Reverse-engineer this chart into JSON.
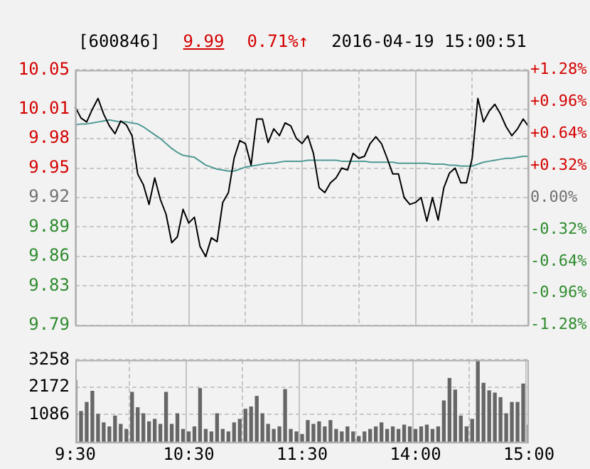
{
  "chart_data": [
    {
      "type": "line",
      "title": "[600846]",
      "annotations": [
        "9.99",
        "0.71%↑",
        "2016-04-19 15:00:51"
      ],
      "categories": [
        null,
        null,
        null,
        null,
        null,
        null,
        null,
        null,
        null,
        null,
        null,
        null,
        null,
        null,
        null,
        null,
        null,
        null,
        null,
        null,
        null,
        null,
        null,
        null,
        null,
        null,
        null,
        null,
        null,
        null,
        null,
        null,
        null,
        null,
        null,
        null,
        null,
        null,
        null,
        null,
        null,
        null,
        null,
        null,
        null,
        null,
        null,
        null,
        null,
        null,
        null,
        null,
        null,
        null,
        null,
        null,
        null,
        null,
        null,
        null,
        null,
        null,
        null,
        null,
        null,
        null,
        null,
        null,
        null,
        null,
        null,
        null,
        null,
        null,
        null,
        null,
        null,
        null,
        null,
        null,
        null
      ],
      "series": [
        {
          "color": "#000000",
          "values": [
            10.012,
            10.001,
            9.997,
            10.01,
            10.021,
            10.005,
            9.993,
            9.985,
            9.998,
            9.994,
            9.983,
            9.944,
            9.933,
            9.913,
            9.94,
            9.918,
            9.903,
            9.874,
            9.88,
            9.908,
            9.894,
            9.9,
            9.87,
            9.86,
            9.879,
            9.875,
            9.915,
            9.925,
            9.96,
            9.978,
            9.975,
            9.953,
            10.0,
            10.0,
            9.976,
            9.99,
            9.983,
            9.996,
            9.993,
            9.98,
            9.975,
            9.983,
            9.965,
            9.93,
            9.925,
            9.935,
            9.94,
            9.95,
            9.948,
            9.965,
            9.96,
            9.962,
            9.975,
            9.982,
            9.975,
            9.96,
            9.944,
            9.944,
            9.92,
            9.913,
            9.915,
            9.92,
            9.896,
            9.92,
            9.897,
            9.93,
            9.945,
            9.95,
            9.935,
            9.935,
            9.96,
            10.021,
            9.997,
            10.008,
            10.015,
            10.005,
            9.992,
            9.983,
            9.99,
            10.0,
            9.992
          ]
        },
        {
          "color": "#4f9a94",
          "values": [
            9.994,
            9.995,
            9.995,
            9.996,
            9.997,
            9.998,
            9.999,
            9.998,
            9.997,
            9.997,
            9.996,
            9.995,
            9.992,
            9.988,
            9.984,
            9.98,
            9.975,
            9.97,
            9.966,
            9.963,
            9.962,
            9.961,
            9.957,
            9.953,
            9.951,
            9.949,
            9.948,
            9.947,
            9.947,
            9.949,
            9.951,
            9.952,
            9.953,
            9.954,
            9.955,
            9.955,
            9.956,
            9.957,
            9.957,
            9.957,
            9.957,
            9.958,
            9.958,
            9.958,
            9.958,
            9.958,
            9.958,
            9.957,
            9.957,
            9.957,
            9.957,
            9.957,
            9.956,
            9.956,
            9.956,
            9.956,
            9.956,
            9.955,
            9.955,
            9.955,
            9.955,
            9.955,
            9.955,
            9.954,
            9.954,
            9.954,
            9.953,
            9.953,
            9.952,
            9.952,
            9.952,
            9.954,
            9.956,
            9.957,
            9.958,
            9.959,
            9.96,
            9.96,
            9.961,
            9.962,
            9.962
          ]
        }
      ],
      "ylim": [
        9.79,
        10.05
      ],
      "yticks": [
        9.79,
        9.83,
        9.86,
        9.89,
        9.92,
        9.95,
        9.98,
        10.01,
        10.05
      ],
      "y2lim": [
        -1.28,
        1.28
      ],
      "y2ticks": [
        {
          "value": -1.28,
          "label": "-1.28%"
        },
        {
          "value": -0.96,
          "label": "-0.96%"
        },
        {
          "value": -0.64,
          "label": "-0.64%"
        },
        {
          "value": -0.32,
          "label": "-0.32%"
        },
        {
          "value": 0,
          "label": "0.00%"
        },
        {
          "value": 0.32,
          "label": "+0.32%"
        },
        {
          "value": 0.64,
          "label": "+0.64%"
        },
        {
          "value": 0.96,
          "label": "+0.96%"
        },
        {
          "value": 1.28,
          "label": "+1.28%"
        }
      ],
      "grid": true,
      "tick_labels": "y",
      "marker": "none",
      "line_style": "solid"
    },
    {
      "type": "bar",
      "color": "#666666",
      "categories": [
        "9:30",
        null,
        null,
        null,
        null,
        null,
        null,
        null,
        null,
        null,
        null,
        null,
        null,
        null,
        null,
        null,
        null,
        null,
        null,
        null,
        "10:30",
        null,
        null,
        null,
        null,
        null,
        null,
        null,
        null,
        null,
        null,
        null,
        null,
        null,
        null,
        null,
        null,
        null,
        null,
        null,
        "11:30",
        null,
        null,
        null,
        null,
        null,
        null,
        null,
        null,
        null,
        null,
        null,
        null,
        null,
        null,
        null,
        null,
        null,
        null,
        null,
        "14:00",
        null,
        null,
        null,
        null,
        null,
        null,
        null,
        null,
        null,
        null,
        null,
        null,
        null,
        null,
        null,
        null,
        null,
        null,
        null,
        "15:00"
      ],
      "values": [
        2440,
        1210,
        1570,
        2010,
        1100,
        760,
        600,
        1030,
        700,
        500,
        1970,
        1360,
        1120,
        800,
        900,
        700,
        1970,
        700,
        1120,
        500,
        400,
        600,
        2120,
        500,
        400,
        1120,
        500,
        400,
        760,
        900,
        1300,
        1390,
        1810,
        1120,
        700,
        500,
        600,
        2080,
        500,
        400,
        300,
        850,
        700,
        800,
        600,
        850,
        500,
        400,
        600,
        400,
        220,
        400,
        500,
        600,
        760,
        500,
        600,
        500,
        670,
        600,
        500,
        600,
        670,
        500,
        600,
        1630,
        2520,
        2060,
        1030,
        600,
        900,
        3250,
        2330,
        2030,
        1940,
        1760,
        1120,
        1570,
        1570,
        2300,
        670
      ],
      "ylim": [
        0,
        3258
      ],
      "yticks": [
        {
          "value": 0,
          "label": null
        },
        1086,
        2172,
        3258
      ],
      "grid": true
    }
  ]
}
